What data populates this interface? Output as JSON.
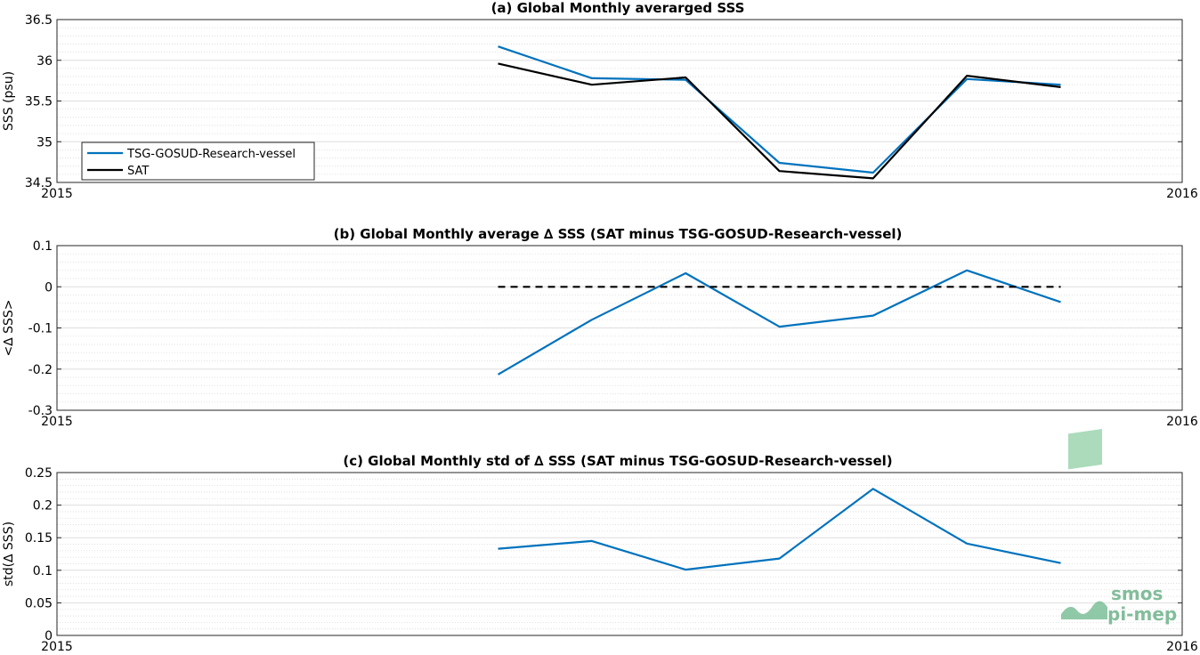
{
  "chart_data": [
    {
      "type": "line",
      "title": "(a) Global Monthly averarged SSS",
      "ylabel": "SSS (psu)",
      "xlabel": "",
      "xlim": [
        "2015",
        "2016"
      ],
      "x_tick_labels": [
        "2015",
        "2016"
      ],
      "ylim": [
        34.5,
        36.5
      ],
      "y_ticks": [
        34.5,
        35,
        35.5,
        36,
        36.5
      ],
      "y_tick_labels": [
        "34.5",
        "35",
        "35.5",
        "36",
        "36.5"
      ],
      "grid": true,
      "legend": "bottom-left",
      "x": [
        "2015-05",
        "2015-06",
        "2015-07",
        "2015-08",
        "2015-09",
        "2015-10",
        "2015-11"
      ],
      "series": [
        {
          "name": "TSG-GOSUD-Research-vessel",
          "color": "#0072BD",
          "style": "solid",
          "values": [
            36.17,
            35.78,
            35.76,
            34.74,
            34.62,
            35.77,
            35.7
          ]
        },
        {
          "name": "SAT",
          "color": "#000000",
          "style": "solid",
          "values": [
            35.96,
            35.7,
            35.79,
            34.64,
            34.55,
            35.81,
            35.67
          ]
        }
      ]
    },
    {
      "type": "line",
      "title": "(b) Global Monthly average ∆ SSS (SAT minus TSG-GOSUD-Research-vessel)",
      "ylabel": "<∆ SSS>",
      "xlabel": "",
      "xlim": [
        "2015",
        "2016"
      ],
      "x_tick_labels": [
        "2015",
        "2016"
      ],
      "ylim": [
        -0.3,
        0.1
      ],
      "y_ticks": [
        -0.3,
        -0.2,
        -0.1,
        0,
        0.1
      ],
      "y_tick_labels": [
        "-0.3",
        "-0.2",
        "-0.1",
        "0",
        "0.1"
      ],
      "grid": true,
      "x": [
        "2015-05",
        "2015-06",
        "2015-07",
        "2015-08",
        "2015-09",
        "2015-10",
        "2015-11"
      ],
      "series": [
        {
          "color": "#0072BD",
          "style": "solid",
          "values": [
            -0.213,
            -0.08,
            0.033,
            -0.097,
            -0.07,
            0.04,
            -0.037
          ]
        },
        {
          "color": "#000000",
          "style": "dashed",
          "values": [
            0,
            0,
            0,
            0,
            0,
            0,
            0
          ]
        }
      ]
    },
    {
      "type": "line",
      "title": "(c) Global Monthly std of ∆ SSS (SAT minus TSG-GOSUD-Research-vessel)",
      "ylabel": "std(∆ SSS)",
      "xlabel": "",
      "xlim": [
        "2015",
        "2016"
      ],
      "x_tick_labels": [
        "2015",
        "2016"
      ],
      "ylim": [
        0,
        0.25
      ],
      "y_ticks": [
        0,
        0.05,
        0.1,
        0.15,
        0.2,
        0.25
      ],
      "y_tick_labels": [
        "0",
        "0.05",
        "0.1",
        "0.15",
        "0.2",
        "0.25"
      ],
      "grid": true,
      "x": [
        "2015-05",
        "2015-06",
        "2015-07",
        "2015-08",
        "2015-09",
        "2015-10",
        "2015-11"
      ],
      "series": [
        {
          "color": "#0072BD",
          "style": "solid",
          "values": [
            0.133,
            0.145,
            0.101,
            0.118,
            0.225,
            0.141,
            0.111
          ]
        }
      ]
    }
  ],
  "watermark": {
    "line1": "smos",
    "line2": "pi-mep",
    "color": "#5aa87a"
  }
}
